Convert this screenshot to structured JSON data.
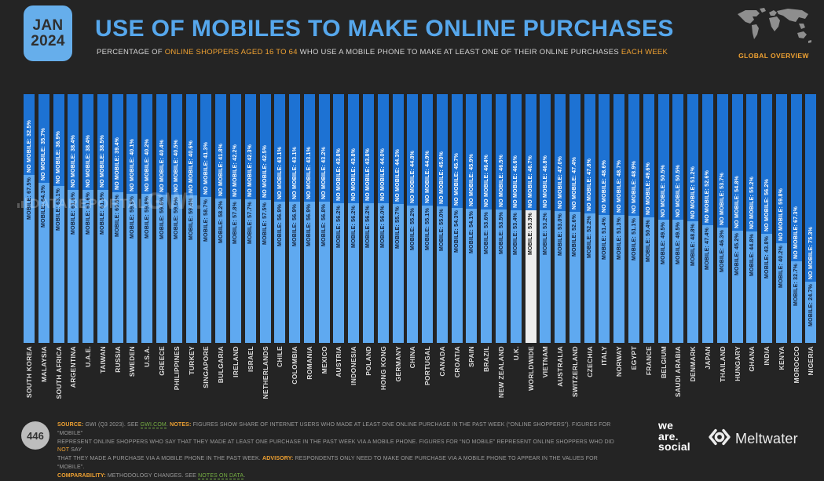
{
  "header": {
    "date_line1": "JAN",
    "date_line2": "2024",
    "title": "USE OF MOBILES TO MAKE ONLINE PURCHASES",
    "subtitle_segments": [
      {
        "t": "PERCENTAGE OF ",
        "s": "plain"
      },
      {
        "t": "ONLINE SHOPPERS AGED 16 TO 64",
        "s": "accent"
      },
      {
        "t": " WHO USE A MOBILE PHONE TO MAKE AT LEAST ONE OF THEIR ONLINE PURCHASES ",
        "s": "plain"
      },
      {
        "t": "EACH WEEK",
        "s": "accent"
      }
    ],
    "overview_label": "GLOBAL OVERVIEW",
    "map_icon": "world-map-icon"
  },
  "chart_data": {
    "type": "bar",
    "stacked": true,
    "percent_total": 100,
    "unit": "%",
    "highlight_category": "WORLDWIDE",
    "legend_position": "in-bar-labels",
    "categories": [
      "SOUTH KOREA",
      "MALAYSIA",
      "SOUTH AFRICA",
      "ARGENTINA",
      "U.A.E.",
      "TAIWAN",
      "RUSSIA",
      "SWEDEN",
      "U.S.A.",
      "GREECE",
      "PHILIPPINES",
      "TURKEY",
      "SINGAPORE",
      "BULGARIA",
      "IRELAND",
      "ISRAEL",
      "NETHERLANDS",
      "CHILE",
      "COLOMBIA",
      "ROMANIA",
      "MEXICO",
      "AUSTRIA",
      "INDONESIA",
      "POLAND",
      "HONG KONG",
      "GERMANY",
      "CHINA",
      "PORTUGAL",
      "CANADA",
      "CROATIA",
      "SPAIN",
      "BRAZIL",
      "NEW ZEALAND",
      "U.K.",
      "WORLDWIDE",
      "VIETNAM",
      "AUSTRALIA",
      "SWITZERLAND",
      "CZECHIA",
      "ITALY",
      "NORWAY",
      "EGYPT",
      "FRANCE",
      "BELGIUM",
      "SAUDI ARABIA",
      "DENMARK",
      "JAPAN",
      "THAILAND",
      "HUNGARY",
      "GHANA",
      "INDIA",
      "KENYA",
      "MOROCCO",
      "NIGERIA"
    ],
    "series": [
      {
        "name": "MOBILE",
        "values": [
          67.5,
          64.3,
          63.1,
          61.6,
          61.6,
          61.5,
          60.6,
          59.9,
          59.8,
          59.6,
          59.5,
          59.4,
          58.7,
          58.2,
          57.8,
          57.7,
          57.5,
          56.9,
          56.9,
          56.9,
          56.8,
          56.2,
          56.2,
          56.2,
          56.0,
          55.7,
          55.2,
          55.1,
          55.0,
          54.3,
          54.1,
          53.6,
          53.5,
          53.4,
          53.3,
          53.2,
          53.0,
          52.6,
          52.2,
          51.4,
          51.3,
          51.1,
          50.4,
          49.5,
          49.5,
          48.8,
          47.4,
          46.3,
          45.2,
          44.8,
          43.8,
          40.2,
          32.7,
          24.7
        ]
      },
      {
        "name": "NO MOBILE",
        "values": [
          32.5,
          35.7,
          36.9,
          38.4,
          38.4,
          38.5,
          39.4,
          40.1,
          40.2,
          40.4,
          40.5,
          40.6,
          41.3,
          41.8,
          42.2,
          42.3,
          42.5,
          43.1,
          43.1,
          43.1,
          43.2,
          43.8,
          43.8,
          43.8,
          44.0,
          44.3,
          44.8,
          44.9,
          45.0,
          45.7,
          45.9,
          46.4,
          46.5,
          46.6,
          46.7,
          46.8,
          47.0,
          47.4,
          47.8,
          48.6,
          48.7,
          48.9,
          49.6,
          50.5,
          50.5,
          51.2,
          52.6,
          53.7,
          54.8,
          55.2,
          56.2,
          59.8,
          67.3,
          75.3
        ]
      }
    ],
    "colors": {
      "mobile": "#5FA9F0",
      "no_mobile": "#1D72D3",
      "highlight_mobile": "#EDEDED",
      "mobile_label_text": "#14233C",
      "no_mobile_label_text": "#FFFFFF"
    }
  },
  "watermarks": {
    "datareportal": "DATAREPORTAL",
    "gwi": "GWI.",
    "bar_icon": "bar-chart-icon"
  },
  "footer": {
    "page_number": "446",
    "note_lines": [
      [
        {
          "t": "SOURCE:",
          "s": "accent-bold"
        },
        {
          "t": " GWI (Q3 2023). SEE ",
          "s": "plain"
        },
        {
          "t": "GWI.COM",
          "s": "link"
        },
        {
          "t": ". ",
          "s": "plain"
        },
        {
          "t": "NOTES:",
          "s": "accent-bold"
        },
        {
          "t": " FIGURES SHOW SHARE OF INTERNET USERS WHO MADE AT LEAST ONE ONLINE PURCHASE IN THE PAST WEEK (“ONLINE SHOPPERS”). FIGURES FOR “MOBILE”",
          "s": "plain"
        }
      ],
      [
        {
          "t": "REPRESENT ONLINE SHOPPERS WHO SAY THAT THEY MADE AT LEAST ONE PURCHASE IN THE PAST WEEK VIA A MOBILE PHONE. FIGURES FOR “NO MOBILE” REPRESENT ONLINE SHOPPERS WHO DID ",
          "s": "plain"
        },
        {
          "t": "NOT",
          "s": "accent"
        },
        {
          "t": " SAY",
          "s": "plain"
        }
      ],
      [
        {
          "t": "THAT THEY MADE A PURCHASE VIA A MOBILE PHONE IN THE PAST WEEK. ",
          "s": "plain"
        },
        {
          "t": "ADVISORY:",
          "s": "accent-bold"
        },
        {
          "t": " RESPONDENTS ONLY NEED TO MAKE ONE PURCHASE VIA A MOBILE PHONE TO APPEAR IN THE VALUES FOR “MOBILE”.",
          "s": "plain"
        }
      ],
      [
        {
          "t": "COMPARABILITY:",
          "s": "accent-bold"
        },
        {
          "t": " METHODOLOGY CHANGES. SEE ",
          "s": "plain"
        },
        {
          "t": "NOTES ON DATA",
          "s": "link"
        },
        {
          "t": ".",
          "s": "plain"
        }
      ]
    ],
    "logos": {
      "was_line1": "we",
      "was_line2": "are.",
      "was_line3": "social",
      "meltwater": "Meltwater",
      "meltwater_icon": "meltwater-eye-icon"
    }
  }
}
